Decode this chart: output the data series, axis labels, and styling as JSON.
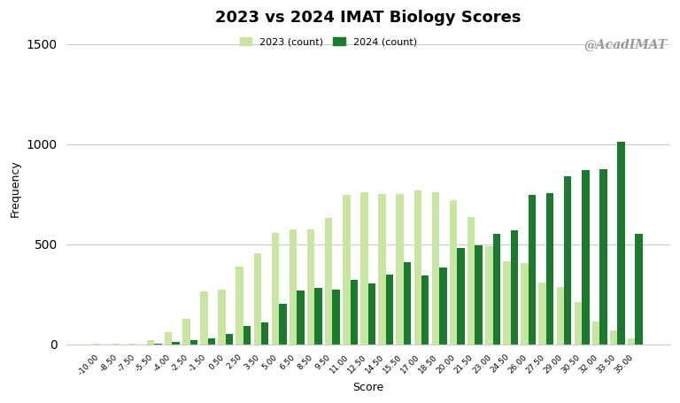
{
  "title": "2023 vs 2024 IMAT Biology Scores",
  "xlabel": "Score",
  "ylabel": "Frequency",
  "watermark": "@AcadIMAT",
  "color_2023": "#c8e6a0",
  "color_2024": "#1a7a2e",
  "legend_2023": "2023 (count)",
  "legend_2024": "2024 (count)",
  "background_color": "#ffffff",
  "ylim": [
    0,
    1560
  ],
  "yticks": [
    0,
    500,
    1000,
    1500
  ],
  "bins": [
    "-10.00",
    "-8.50",
    "-7.50",
    "-5.50",
    "-4.00",
    "-2.50",
    "-1.50",
    "0.50",
    "2.50",
    "3.50",
    "5.00",
    "6.50",
    "8.50",
    "9.50",
    "11.00",
    "12.50",
    "14.50",
    "15.50",
    "17.00",
    "18.50",
    "20.00",
    "21.50",
    "23.00",
    "24.50",
    "26.00",
    "27.50",
    "29.00",
    "30.50",
    "32.00",
    "33.50",
    "35.00"
  ],
  "values_2023": [
    2,
    3,
    5,
    20,
    60,
    125,
    265,
    275,
    390,
    455,
    555,
    575,
    575,
    630,
    745,
    760,
    750,
    750,
    770,
    760,
    720,
    635,
    490,
    415,
    405,
    310,
    285,
    210,
    115,
    70,
    28
  ],
  "values_2024": [
    0,
    0,
    0,
    5,
    12,
    20,
    30,
    50,
    90,
    110,
    200,
    270,
    280,
    275,
    320,
    305,
    350,
    410,
    345,
    385,
    480,
    495,
    550,
    570,
    745,
    755,
    840,
    870,
    875,
    1010,
    550
  ]
}
